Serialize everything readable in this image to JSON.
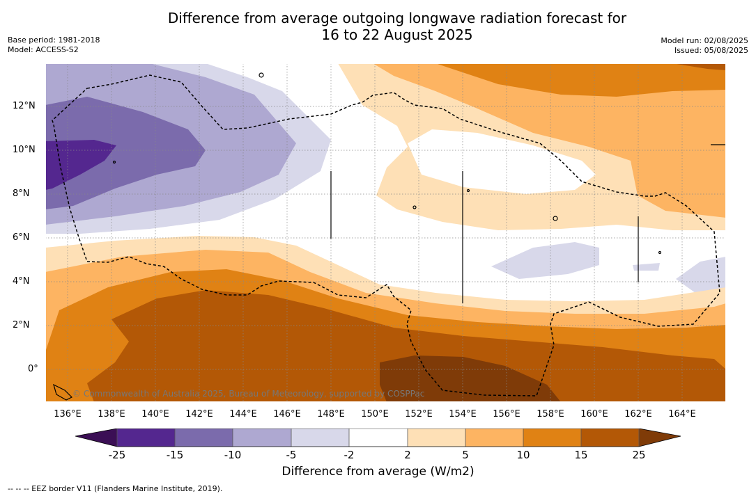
{
  "header": {
    "title_line1": "Difference from average outgoing longwave radiation forecast for",
    "title_line2": "16 to 22 August 2025",
    "base_period": "Base period: 1981-2018",
    "model": "Model: ACCESS-S2",
    "model_run": "Model run: 02/08/2025",
    "issued": "Issued: 05/08/2025"
  },
  "map": {
    "lat_labels": [
      "12°N",
      "10°N",
      "8°N",
      "6°N",
      "4°N",
      "2°N",
      "0°"
    ],
    "lon_labels": [
      "136°E",
      "138°E",
      "140°E",
      "142°E",
      "144°E",
      "146°E",
      "148°E",
      "150°E",
      "152°E",
      "154°E",
      "156°E",
      "158°E",
      "160°E",
      "162°E",
      "164°E"
    ],
    "credit": "© Commonwealth of Australia 2025, Bureau of Meteorology, supported by COSPPac"
  },
  "colorbar": {
    "tick_labels": [
      "-25",
      "-15",
      "-10",
      "-5",
      "-2",
      "2",
      "5",
      "10",
      "15",
      "25"
    ],
    "colors": [
      "#3b0f55",
      "#54278f",
      "#7b6bac",
      "#aea8d1",
      "#d8d8ea",
      "#ffffff",
      "#fee0b6",
      "#fdb462",
      "#e08214",
      "#b35806",
      "#7f3b08"
    ],
    "title": "Difference from average (W/m2)"
  },
  "footnote": "--  --  -- EEZ border V11 (Flanders Marine Institute, 2019)."
}
